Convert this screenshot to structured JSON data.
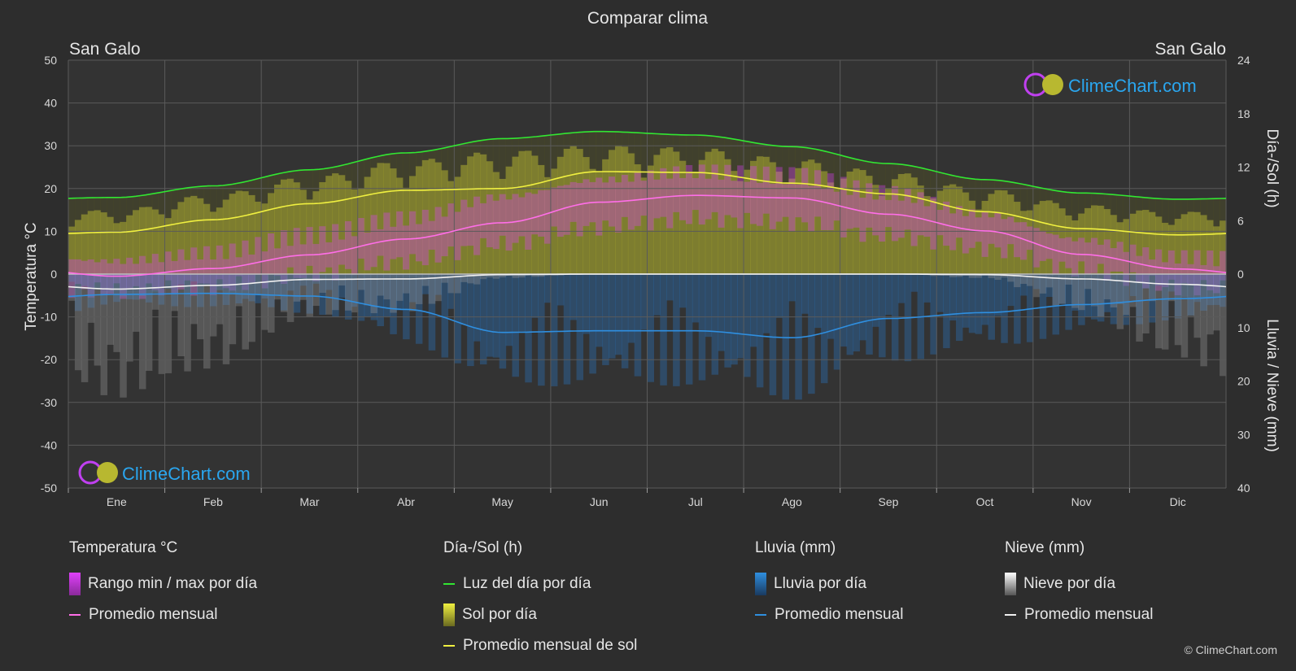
{
  "title": "Comparar clima",
  "location_left": "San Galo",
  "location_right": "San Galo",
  "watermark": "ClimeChart.com",
  "copyright": "© ClimeChart.com",
  "colors": {
    "background": "#2d2d2d",
    "grid": "#5a5a5a",
    "temp_range": "#e040fb",
    "temp_avg": "#ff6ee8",
    "daylight": "#32e632",
    "sun_fill": "#c8c832",
    "sun_avg": "#f0f040",
    "rain_fill": "#2878c8",
    "rain_avg": "#2f8fe0",
    "snow_fill": "#9a9a9a",
    "snow_avg": "#f0f0f0",
    "brand": "#2aa6ef"
  },
  "legend": {
    "groups": [
      {
        "title": "Temperatura °C",
        "items": [
          {
            "label": "Rango min / max por día",
            "swatch": "box",
            "color": "#e040fb"
          },
          {
            "label": "Promedio mensual",
            "swatch": "line",
            "color": "#ff6ee8"
          }
        ]
      },
      {
        "title": "Día-/Sol (h)",
        "items": [
          {
            "label": "Luz del día por día",
            "swatch": "line",
            "color": "#32e632"
          },
          {
            "label": "Sol por día",
            "swatch": "box",
            "color": "#c8c832"
          },
          {
            "label": "Promedio mensual de sol",
            "swatch": "line",
            "color": "#f0f040"
          }
        ]
      },
      {
        "title": "Lluvia (mm)",
        "items": [
          {
            "label": "Lluvia por día",
            "swatch": "box",
            "color": "#2878c8"
          },
          {
            "label": "Promedio mensual",
            "swatch": "line",
            "color": "#2f8fe0"
          }
        ]
      },
      {
        "title": "Nieve (mm)",
        "items": [
          {
            "label": "Nieve por día",
            "swatch": "box",
            "color": "#dddddd"
          },
          {
            "label": "Promedio mensual",
            "swatch": "line",
            "color": "#f0f0f0"
          }
        ]
      }
    ]
  },
  "chart_data": {
    "type": "line",
    "title": "Comparar clima",
    "categories": [
      "Ene",
      "Feb",
      "Mar",
      "Abr",
      "May",
      "Jun",
      "Jul",
      "Ago",
      "Sep",
      "Oct",
      "Nov",
      "Dic"
    ],
    "y_left": {
      "label": "Temperatura °C",
      "ticks": [
        50,
        40,
        30,
        20,
        10,
        0,
        -10,
        -20,
        -30,
        -40,
        -50
      ],
      "range": [
        -50,
        50
      ]
    },
    "y_right_top": {
      "label": "Día-/Sol (h)",
      "ticks": [
        24,
        18,
        12,
        6,
        0
      ],
      "range": [
        0,
        24
      ]
    },
    "y_right_bottom": {
      "label": "Lluvia / Nieve (mm)",
      "ticks": [
        0,
        10,
        20,
        30,
        40
      ],
      "range": [
        0,
        40
      ]
    },
    "grid": true,
    "series": [
      {
        "name": "Luz del día por día",
        "unit": "h",
        "values": [
          8.6,
          9.9,
          11.7,
          13.6,
          15.2,
          16.0,
          15.6,
          14.3,
          12.4,
          10.6,
          9.1,
          8.4
        ]
      },
      {
        "name": "Sol por día",
        "unit": "h",
        "values": [
          7.2,
          9.0,
          11.0,
          12.8,
          13.8,
          14.5,
          14.2,
          13.0,
          11.5,
          9.6,
          7.8,
          7.0
        ]
      },
      {
        "name": "Promedio mensual de sol",
        "unit": "h",
        "values": [
          4.7,
          6.1,
          7.9,
          9.4,
          9.6,
          11.5,
          11.4,
          10.2,
          9.0,
          7.0,
          5.1,
          4.4
        ]
      },
      {
        "name": "Rango max",
        "unit": "°C",
        "values": [
          3,
          5,
          9,
          13,
          18,
          22,
          24,
          23,
          19,
          14,
          8,
          4
        ]
      },
      {
        "name": "Rango min",
        "unit": "°C",
        "values": [
          -4,
          -3,
          0,
          3,
          7,
          11,
          13,
          12,
          9,
          6,
          1,
          -3
        ]
      },
      {
        "name": "Promedio mensual temperatura",
        "unit": "°C",
        "values": [
          -0.5,
          1.3,
          4.5,
          8.2,
          12.0,
          16.8,
          18.4,
          17.8,
          14.0,
          10.1,
          4.6,
          1.2
        ]
      },
      {
        "name": "Lluvia por día",
        "unit": "mm",
        "values": [
          3.0,
          3.1,
          3.7,
          6.4,
          10.6,
          10.4,
          10.5,
          11.8,
          8.3,
          7.0,
          5.6,
          4.3
        ]
      },
      {
        "name": "Promedio mensual lluvia",
        "unit": "mm",
        "values": [
          3.8,
          3.6,
          4.1,
          6.6,
          10.9,
          10.6,
          10.6,
          11.9,
          8.3,
          7.2,
          5.7,
          4.6
        ]
      },
      {
        "name": "Nieve por día",
        "unit": "mm",
        "values": [
          2.9,
          2.2,
          1.0,
          0.9,
          0.1,
          0,
          0,
          0,
          0,
          0.1,
          0.9,
          2.0
        ]
      },
      {
        "name": "Promedio mensual nieve",
        "unit": "mm",
        "values": [
          2.8,
          2.1,
          1.0,
          0.9,
          0.1,
          0,
          0,
          0,
          0,
          0.1,
          0.9,
          1.9
        ]
      }
    ]
  }
}
